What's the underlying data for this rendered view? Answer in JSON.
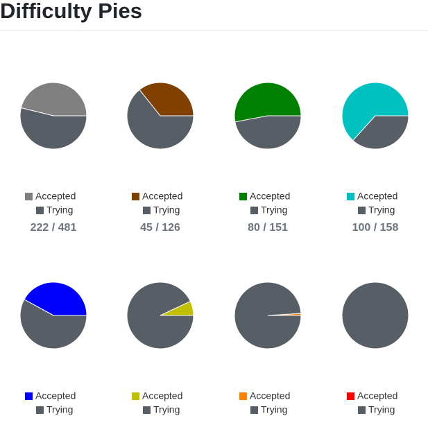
{
  "title": "Difficulty Pies",
  "chart_data": [
    {
      "type": "pie",
      "categories": [
        "Accepted",
        "Trying"
      ],
      "colors": [
        "#808080",
        "#575e66"
      ],
      "values": [
        222,
        259
      ],
      "count_label": "222 / 481"
    },
    {
      "type": "pie",
      "categories": [
        "Accepted",
        "Trying"
      ],
      "colors": [
        "#804000",
        "#575e66"
      ],
      "values": [
        45,
        81
      ],
      "count_label": "45 / 126"
    },
    {
      "type": "pie",
      "categories": [
        "Accepted",
        "Trying"
      ],
      "colors": [
        "#008000",
        "#575e66"
      ],
      "values": [
        80,
        71
      ],
      "count_label": "80 / 151"
    },
    {
      "type": "pie",
      "categories": [
        "Accepted",
        "Trying"
      ],
      "colors": [
        "#00c0c0",
        "#575e66"
      ],
      "values": [
        100,
        58
      ],
      "count_label": "100 / 158"
    },
    {
      "type": "pie",
      "categories": [
        "Accepted",
        "Trying"
      ],
      "colors": [
        "#0000ff",
        "#575e66"
      ],
      "values": [
        42,
        58
      ]
    },
    {
      "type": "pie",
      "categories": [
        "Accepted",
        "Trying"
      ],
      "colors": [
        "#c0c000",
        "#575e66"
      ],
      "values": [
        7,
        93
      ]
    },
    {
      "type": "pie",
      "categories": [
        "Accepted",
        "Trying"
      ],
      "colors": [
        "#ff8000",
        "#575e66"
      ],
      "values": [
        1,
        99
      ]
    },
    {
      "type": "pie",
      "categories": [
        "Accepted",
        "Trying"
      ],
      "colors": [
        "#ff0000",
        "#575e66"
      ],
      "values": [
        0,
        100
      ]
    }
  ]
}
